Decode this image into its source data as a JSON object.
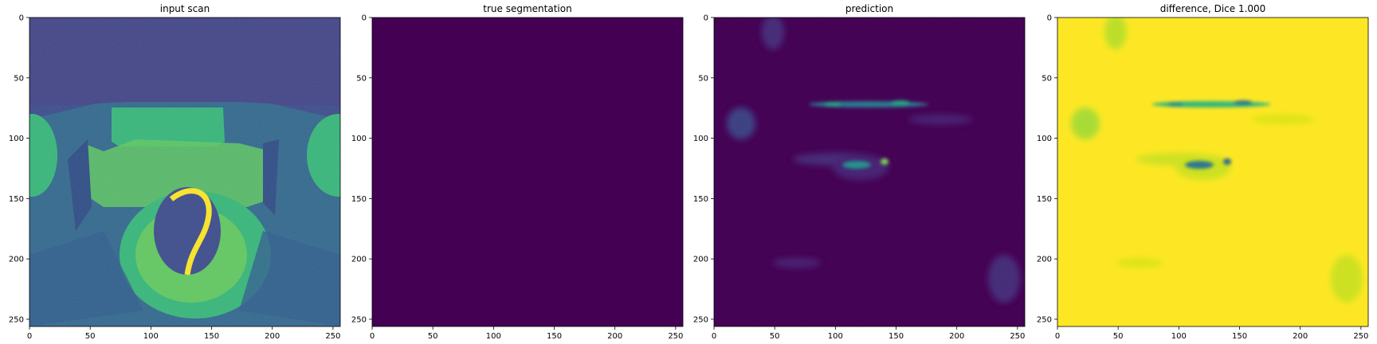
{
  "figure": {
    "panels": [
      {
        "title": "input scan",
        "style": "scan"
      },
      {
        "title": "true segmentation",
        "style": "empty"
      },
      {
        "title": "prediction",
        "style": "prediction"
      },
      {
        "title": "difference, Dice 1.000",
        "style": "difference"
      }
    ],
    "ticks": {
      "x": [
        0,
        50,
        100,
        150,
        200,
        250
      ],
      "y": [
        0,
        50,
        100,
        150,
        200,
        250
      ]
    },
    "image_extent": [
      0,
      256
    ],
    "colormap": "viridis",
    "colors": {
      "dark": "#440154",
      "mid": "#21918c",
      "bright": "#5ec962",
      "yellow": "#fde725"
    }
  }
}
